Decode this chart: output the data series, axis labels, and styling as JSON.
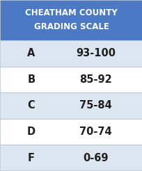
{
  "title_line1": "CHEATHAM COUNTY",
  "title_line2": "GRADING SCALE",
  "header_bg": "#4B79C4",
  "header_text_color": "#FFFFFF",
  "grades": [
    "A",
    "B",
    "C",
    "D",
    "F"
  ],
  "ranges": [
    "93-100",
    "85-92",
    "75-84",
    "70-74",
    "0-69"
  ],
  "row_colors": [
    "#DCE6F1",
    "#FFFFFF",
    "#DCE6F1",
    "#FFFFFF",
    "#DCE6F1"
  ],
  "row_text_color": "#1F1F1F",
  "divider_color": "#C0C8D8",
  "fig_bg": "#FFFFFF",
  "title_fontsize": 8.5,
  "row_fontsize": 10.5,
  "figwidth": 2.05,
  "figheight": 2.46,
  "dpi": 100
}
